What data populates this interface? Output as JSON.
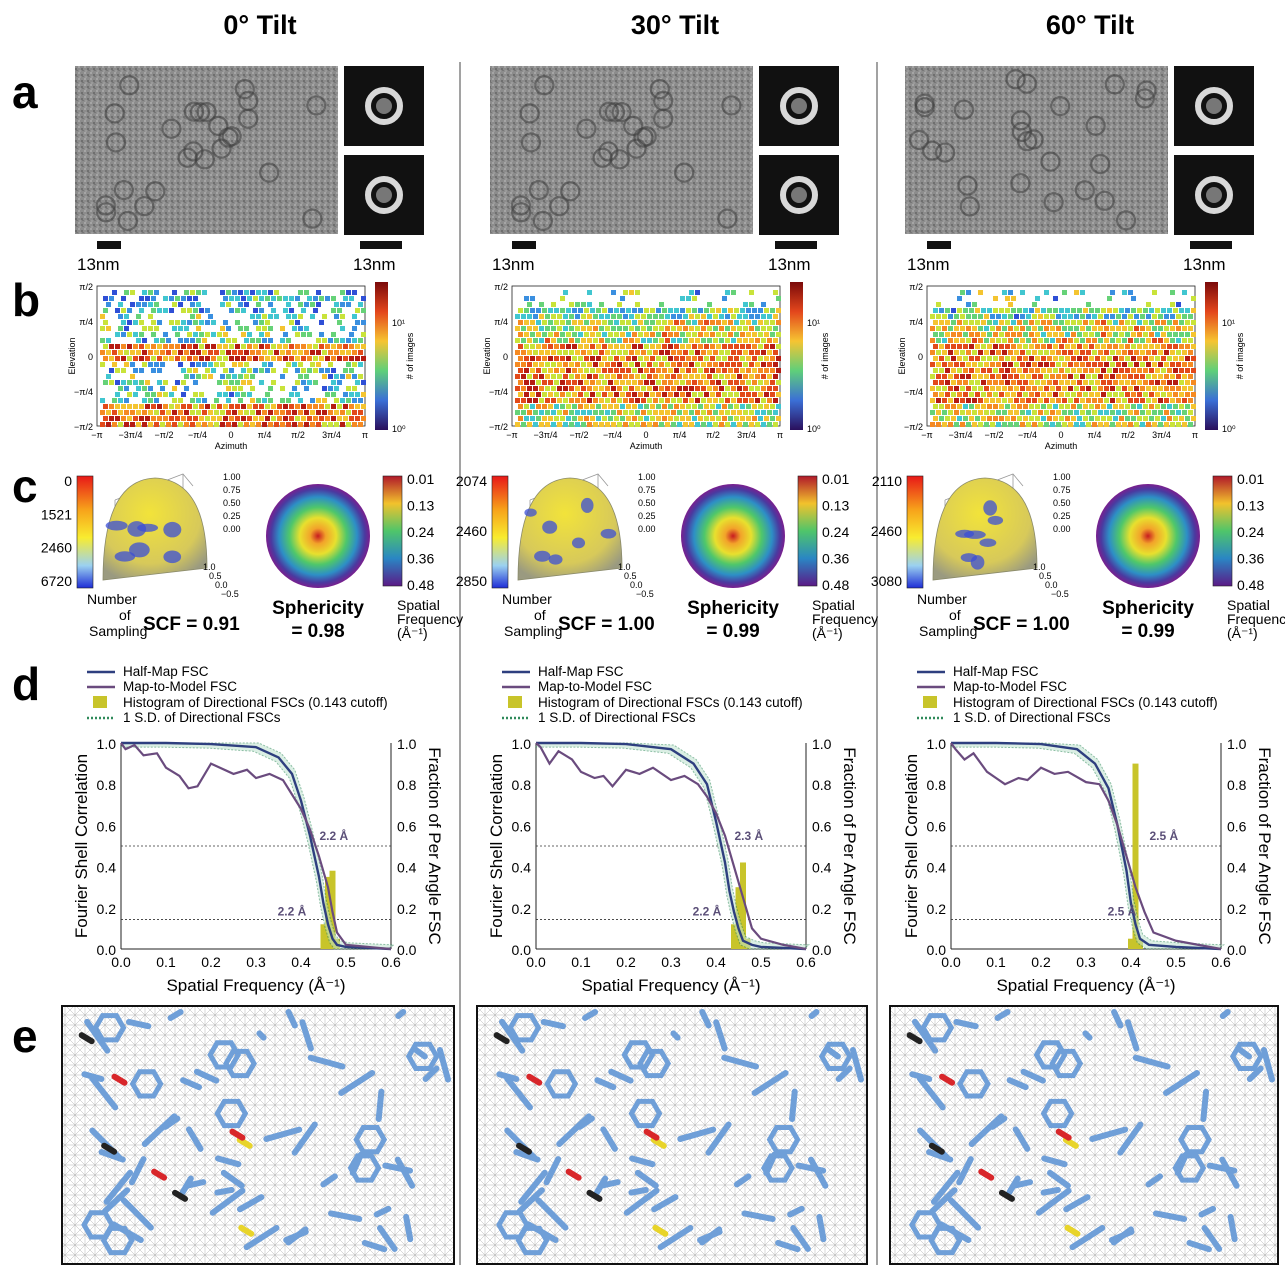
{
  "columns": [
    {
      "title": "0° Tilt",
      "scale_label_left": "13nm",
      "scale_label_right": "13nm",
      "cb_ticks": [
        "0",
        "1521",
        "2460",
        "6720"
      ],
      "scf": "SCF = 0.91",
      "sphericity_line1": "Sphericity",
      "sphericity_line2": "= 0.98",
      "ann_upper": "2.2 Å",
      "ann_lower": "2.2 Å",
      "elev_colors": [
        "#ffffff"
      ],
      "fsc": {
        "halfmap": [
          [
            0.0,
            1.0
          ],
          [
            0.1,
            1.0
          ],
          [
            0.2,
            0.995
          ],
          [
            0.3,
            0.98
          ],
          [
            0.35,
            0.93
          ],
          [
            0.38,
            0.85
          ],
          [
            0.4,
            0.72
          ],
          [
            0.42,
            0.55
          ],
          [
            0.44,
            0.35
          ],
          [
            0.45,
            0.22
          ],
          [
            0.46,
            0.12
          ],
          [
            0.47,
            0.05
          ],
          [
            0.48,
            0.02
          ],
          [
            0.5,
            0.01
          ],
          [
            0.6,
            0.0
          ]
        ],
        "model": [
          [
            0.0,
            1.0
          ],
          [
            0.01,
            0.97
          ],
          [
            0.03,
            0.99
          ],
          [
            0.05,
            0.94
          ],
          [
            0.08,
            0.95
          ],
          [
            0.1,
            0.88
          ],
          [
            0.13,
            0.84
          ],
          [
            0.15,
            0.78
          ],
          [
            0.17,
            0.79
          ],
          [
            0.2,
            0.9
          ],
          [
            0.22,
            0.88
          ],
          [
            0.25,
            0.85
          ],
          [
            0.28,
            0.87
          ],
          [
            0.3,
            0.83
          ],
          [
            0.33,
            0.85
          ],
          [
            0.36,
            0.82
          ],
          [
            0.38,
            0.75
          ],
          [
            0.4,
            0.68
          ],
          [
            0.42,
            0.58
          ],
          [
            0.44,
            0.45
          ],
          [
            0.46,
            0.3
          ],
          [
            0.47,
            0.18
          ],
          [
            0.48,
            0.08
          ],
          [
            0.5,
            0.02
          ],
          [
            0.55,
            0.01
          ],
          [
            0.6,
            0.0
          ]
        ],
        "hist": [
          [
            0.45,
            0.12
          ],
          [
            0.46,
            0.35
          ],
          [
            0.47,
            0.38
          ],
          [
            0.48,
            0.05
          ]
        ]
      }
    },
    {
      "title": "30° Tilt",
      "scale_label_left": "13nm",
      "scale_label_right": "13nm",
      "cb_ticks": [
        "2074",
        "2460",
        "2850"
      ],
      "scf": "SCF = 1.00",
      "sphericity_line1": "Sphericity",
      "sphericity_line2": "= 0.99",
      "ann_upper": "2.3 Å",
      "ann_lower": "2.2 Å",
      "elev_colors": [
        "#ffffff"
      ],
      "fsc": {
        "halfmap": [
          [
            0.0,
            1.0
          ],
          [
            0.1,
            1.0
          ],
          [
            0.2,
            0.995
          ],
          [
            0.3,
            0.97
          ],
          [
            0.35,
            0.9
          ],
          [
            0.38,
            0.8
          ],
          [
            0.4,
            0.62
          ],
          [
            0.42,
            0.42
          ],
          [
            0.43,
            0.28
          ],
          [
            0.44,
            0.18
          ],
          [
            0.45,
            0.1
          ],
          [
            0.46,
            0.04
          ],
          [
            0.48,
            0.02
          ],
          [
            0.5,
            0.01
          ],
          [
            0.6,
            0.0
          ]
        ],
        "model": [
          [
            0.0,
            1.0
          ],
          [
            0.01,
            0.98
          ],
          [
            0.03,
            0.9
          ],
          [
            0.05,
            0.96
          ],
          [
            0.08,
            0.92
          ],
          [
            0.1,
            0.86
          ],
          [
            0.13,
            0.83
          ],
          [
            0.15,
            0.84
          ],
          [
            0.17,
            0.79
          ],
          [
            0.2,
            0.87
          ],
          [
            0.23,
            0.85
          ],
          [
            0.26,
            0.88
          ],
          [
            0.3,
            0.82
          ],
          [
            0.33,
            0.84
          ],
          [
            0.36,
            0.8
          ],
          [
            0.38,
            0.74
          ],
          [
            0.4,
            0.66
          ],
          [
            0.42,
            0.55
          ],
          [
            0.44,
            0.4
          ],
          [
            0.46,
            0.25
          ],
          [
            0.48,
            0.1
          ],
          [
            0.5,
            0.05
          ],
          [
            0.55,
            0.02
          ],
          [
            0.6,
            0.0
          ]
        ],
        "hist": [
          [
            0.44,
            0.12
          ],
          [
            0.45,
            0.3
          ],
          [
            0.46,
            0.42
          ],
          [
            0.47,
            0.05
          ]
        ]
      }
    },
    {
      "title": "60° Tilt",
      "scale_label_left": "13nm",
      "scale_label_right": "13nm",
      "cb_ticks": [
        "2110",
        "2460",
        "3080"
      ],
      "scf": "SCF = 1.00",
      "sphericity_line1": "Sphericity",
      "sphericity_line2": "= 0.99",
      "ann_upper": "2.5 Å",
      "ann_lower": "2.5 Å",
      "elev_colors": [
        "#ffffff"
      ],
      "fsc": {
        "halfmap": [
          [
            0.0,
            1.0
          ],
          [
            0.1,
            1.0
          ],
          [
            0.2,
            0.995
          ],
          [
            0.28,
            0.97
          ],
          [
            0.32,
            0.9
          ],
          [
            0.35,
            0.78
          ],
          [
            0.37,
            0.6
          ],
          [
            0.39,
            0.38
          ],
          [
            0.4,
            0.22
          ],
          [
            0.41,
            0.12
          ],
          [
            0.42,
            0.05
          ],
          [
            0.44,
            0.02
          ],
          [
            0.5,
            0.01
          ],
          [
            0.6,
            0.0
          ]
        ],
        "model": [
          [
            0.0,
            1.0
          ],
          [
            0.01,
            0.97
          ],
          [
            0.03,
            0.92
          ],
          [
            0.05,
            0.95
          ],
          [
            0.08,
            0.86
          ],
          [
            0.1,
            0.83
          ],
          [
            0.12,
            0.8
          ],
          [
            0.15,
            0.83
          ],
          [
            0.17,
            0.82
          ],
          [
            0.2,
            0.88
          ],
          [
            0.23,
            0.85
          ],
          [
            0.26,
            0.86
          ],
          [
            0.3,
            0.81
          ],
          [
            0.33,
            0.8
          ],
          [
            0.35,
            0.72
          ],
          [
            0.37,
            0.6
          ],
          [
            0.39,
            0.45
          ],
          [
            0.41,
            0.3
          ],
          [
            0.43,
            0.18
          ],
          [
            0.45,
            0.08
          ],
          [
            0.5,
            0.04
          ],
          [
            0.55,
            0.02
          ],
          [
            0.6,
            0.0
          ]
        ],
        "hist": [
          [
            0.4,
            0.05
          ],
          [
            0.41,
            0.9
          ],
          [
            0.42,
            0.05
          ]
        ]
      }
    }
  ],
  "panel_letters": [
    "a",
    "b",
    "c",
    "d",
    "e"
  ],
  "elevation_ticks": [
    "π/2",
    "π/4",
    "0",
    "−π/4",
    "−π/2"
  ],
  "azimuth_ticks": [
    "−π",
    "−3π/4",
    "−π/2",
    "−π/4",
    "0",
    "π/4",
    "π/2",
    "3π/4",
    "π"
  ],
  "elevation_label": "Elevation",
  "azimuth_label": "Azimuth",
  "hexbin_cb_ticks": [
    "10¹",
    "10⁰"
  ],
  "hexbin_cb_label": "# of images",
  "z_ticks": [
    "1.00",
    "0.75",
    "0.50",
    "0.25",
    "0.00"
  ],
  "xy_ticks": [
    "1.0",
    "0.5",
    "0.0",
    "−0.5"
  ],
  "nos_label": [
    "Number",
    "of",
    "Sampling"
  ],
  "sf_ticks": [
    "0.01",
    "0.13",
    "0.24",
    "0.36",
    "0.48"
  ],
  "sf_label": [
    "Spatial",
    "Frequency",
    "(Å⁻¹)"
  ],
  "legend": [
    "Half-Map FSC",
    "Map-to-Model FSC",
    "Histogram of Directional FSCs (0.143 cutoff)",
    "1 S.D. of Directional FSCs"
  ],
  "fsc_y_ticks": [
    "1.0",
    "0.8",
    "0.6",
    "0.4",
    "0.2",
    "0.0"
  ],
  "fsc_x_ticks": [
    "0.0",
    "0.1",
    "0.2",
    "0.3",
    "0.4",
    "0.5",
    "0.6"
  ],
  "fsc_ylabel": "Fourier Shell Correlation",
  "fsc_y2label": "Fraction of Per Angle FSC",
  "fsc_xlabel": "Spatial Frequency (Å⁻¹)",
  "chart_data": [
    {
      "type": "line",
      "title": "0° Tilt",
      "xlabel": "Spatial Frequency (Å⁻¹)",
      "ylabel": "Fourier Shell Correlation",
      "xlim": [
        0,
        0.6
      ],
      "ylim": [
        0,
        1
      ],
      "series": [
        {
          "name": "Half-Map FSC"
        },
        {
          "name": "Map-to-Model FSC"
        },
        {
          "name": "Histogram of Directional FSCs (0.143 cutoff)"
        }
      ]
    },
    {
      "type": "line",
      "title": "30° Tilt",
      "xlabel": "Spatial Frequency (Å⁻¹)",
      "ylabel": "Fourier Shell Correlation",
      "xlim": [
        0,
        0.6
      ],
      "ylim": [
        0,
        1
      ]
    },
    {
      "type": "line",
      "title": "60° Tilt",
      "xlabel": "Spatial Frequency (Å⁻¹)",
      "ylabel": "Fourier Shell Correlation",
      "xlim": [
        0,
        0.6
      ],
      "ylim": [
        0,
        1
      ]
    }
  ],
  "colors": {
    "halfmap": "#2e3f7f",
    "model": "#6a4b7e",
    "hist": "#c8c42a",
    "sd": "#2f8a5a",
    "annot": "#5b4f78"
  }
}
